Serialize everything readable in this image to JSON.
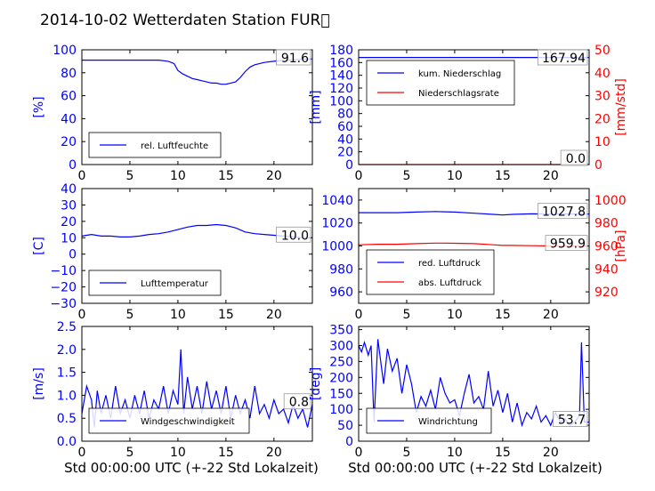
{
  "title": "2014-10-02 Wetterdaten Station FUR\u0000",
  "colors": {
    "left": "#0000ff",
    "right": "#ff0000",
    "line2": "#ff0000"
  },
  "xlabel": "Std 00:00:00 UTC (+-22 Std Lokalzeit)",
  "chart_data": [
    {
      "type": "line",
      "ylabel": "[%]",
      "ylim": [
        0,
        100
      ],
      "yticks": [
        "0",
        "20",
        "40",
        "60",
        "80",
        "100"
      ],
      "xlim": [
        0,
        24
      ],
      "xticks": [
        "0",
        "5",
        "10",
        "15",
        "20"
      ],
      "series": [
        {
          "name": "rel. Luftfeuchte",
          "x": [
            0,
            1,
            2,
            3,
            4,
            5,
            6,
            7,
            8,
            9,
            9.6,
            10,
            10.5,
            11,
            11.5,
            12,
            12.5,
            13,
            13.5,
            14,
            14.5,
            15,
            15.5,
            16,
            16.5,
            17,
            17.5,
            18,
            19,
            20,
            21,
            22,
            23,
            24
          ],
          "y": [
            91,
            91,
            91,
            91,
            91,
            91,
            91,
            91,
            91,
            90,
            88,
            82,
            79,
            77,
            75,
            74,
            73,
            72,
            71,
            71,
            70,
            70,
            71,
            72,
            76,
            81,
            85,
            87,
            89,
            90,
            91,
            91,
            92,
            92
          ]
        }
      ],
      "last_value": "91.6"
    },
    {
      "type": "line",
      "ylabel": "[mm]",
      "ylim": [
        0,
        180
      ],
      "yticks": [
        "0",
        "20",
        "40",
        "60",
        "80",
        "100",
        "120",
        "140",
        "160",
        "180"
      ],
      "ylabel2": "[mm/std]",
      "ylim2": [
        0,
        50
      ],
      "yticks2": [
        "0",
        "10",
        "20",
        "30",
        "40",
        "50"
      ],
      "xlim": [
        0,
        24
      ],
      "xticks": [
        "0",
        "5",
        "10",
        "15",
        "20"
      ],
      "series": [
        {
          "name": "kum. Niederschlag",
          "axis": "left",
          "x": [
            0,
            24
          ],
          "y": [
            167.94,
            167.94
          ]
        },
        {
          "name": "Niederschlagsrate",
          "axis": "right",
          "x": [
            0,
            24
          ],
          "y": [
            0,
            0
          ]
        }
      ],
      "last_value": "167.94",
      "last_value2": "0.0"
    },
    {
      "type": "line",
      "ylabel": "[C]",
      "ylim": [
        -30,
        40
      ],
      "yticks": [
        "−30",
        "−20",
        "−10",
        "0",
        "10",
        "20",
        "30",
        "40"
      ],
      "xlim": [
        0,
        24
      ],
      "xticks": [
        "0",
        "5",
        "10",
        "15",
        "20"
      ],
      "series": [
        {
          "name": "Lufttemperatur",
          "x": [
            0,
            1,
            2,
            3,
            4,
            5,
            6,
            7,
            8,
            9,
            10,
            11,
            12,
            13,
            14,
            15,
            16,
            17,
            18,
            19,
            20,
            21,
            22,
            23,
            24
          ],
          "y": [
            11,
            12,
            11,
            11,
            10.5,
            10.5,
            11,
            12,
            12.5,
            13.5,
            15,
            16.5,
            17.5,
            17.5,
            18,
            17.5,
            16,
            13.5,
            12.5,
            12,
            11.5,
            11,
            10.5,
            10,
            10
          ]
        }
      ],
      "last_value": "10.0"
    },
    {
      "type": "line",
      "ylabel": "",
      "ylim": [
        950,
        1050
      ],
      "yticks": [
        "960",
        "980",
        "1000",
        "1020",
        "1040"
      ],
      "ylabel2": "[hPa]",
      "ylim2": [
        910,
        1010
      ],
      "yticks2": [
        "920",
        "940",
        "960",
        "980",
        "1000"
      ],
      "xlim": [
        0,
        24
      ],
      "xticks": [
        "0",
        "5",
        "10",
        "15",
        "20"
      ],
      "series": [
        {
          "name": "red. Luftdruck",
          "axis": "left",
          "x": [
            0,
            2,
            4,
            6,
            8,
            9,
            10,
            12,
            14,
            15,
            16,
            18,
            20,
            22,
            24
          ],
          "y": [
            1029,
            1029,
            1029,
            1029.5,
            1030,
            1029.8,
            1029.5,
            1028.5,
            1027.5,
            1027,
            1027.5,
            1028,
            1027.8,
            1027.8,
            1027.8
          ]
        },
        {
          "name": "abs. Luftdruck",
          "axis": "right",
          "x": [
            0,
            2,
            4,
            6,
            8,
            9,
            10,
            12,
            14,
            15,
            16,
            18,
            20,
            22,
            24
          ],
          "y": [
            961,
            961.5,
            961.5,
            962,
            962.5,
            962.5,
            962.3,
            962,
            961,
            960.5,
            960.5,
            960.2,
            960,
            959.9,
            959.9
          ]
        }
      ],
      "last_value": "1027.8",
      "last_value2": "959.9"
    },
    {
      "type": "line",
      "ylabel": "[m/s]",
      "ylim": [
        0,
        2.5
      ],
      "yticks": [
        "0.0",
        "0.5",
        "1.0",
        "1.5",
        "2.0",
        "2.5"
      ],
      "xlim": [
        0,
        24
      ],
      "xticks": [
        "0",
        "5",
        "10",
        "15",
        "20"
      ],
      "series": [
        {
          "name": "Windgeschwindigkeit",
          "x": [
            0,
            0.5,
            1,
            1.3,
            1.6,
            2,
            2.5,
            3,
            3.5,
            4,
            4.5,
            5,
            5.5,
            6,
            6.5,
            7,
            7.5,
            8,
            8.5,
            9,
            9.5,
            10,
            10.3,
            10.6,
            11,
            11.5,
            12,
            12.5,
            13,
            13.5,
            14,
            14.5,
            15,
            15.5,
            16,
            16.5,
            17,
            17.5,
            18,
            18.5,
            19,
            19.5,
            20,
            20.5,
            21,
            21.5,
            22,
            22.5,
            23,
            23.5,
            24
          ],
          "y": [
            0.6,
            1.2,
            0.9,
            0.3,
            1.1,
            0.6,
            1.0,
            0.5,
            1.2,
            0.6,
            0.9,
            0.5,
            1.0,
            0.6,
            1.1,
            0.5,
            0.9,
            0.7,
            1.2,
            0.6,
            1.1,
            0.8,
            2.0,
            0.6,
            1.4,
            0.7,
            1.2,
            0.6,
            1.3,
            0.7,
            1.1,
            0.6,
            1.2,
            0.5,
            1.0,
            0.6,
            0.9,
            0.5,
            1.2,
            0.6,
            0.8,
            0.5,
            0.9,
            0.6,
            0.7,
            0.4,
            0.8,
            0.5,
            0.7,
            0.3,
            0.8
          ]
        }
      ],
      "last_value": "0.8"
    },
    {
      "type": "line",
      "ylabel": "[deg]",
      "ylim": [
        0,
        360
      ],
      "yticks": [
        "0",
        "50",
        "100",
        "150",
        "200",
        "250",
        "300",
        "350"
      ],
      "xlim": [
        0,
        24
      ],
      "xticks": [
        "0",
        "5",
        "10",
        "15",
        "20"
      ],
      "series": [
        {
          "name": "Windrichtung",
          "x": [
            0,
            0.3,
            0.6,
            1,
            1.3,
            1.6,
            2,
            2.3,
            2.6,
            3,
            3.5,
            4,
            4.5,
            5,
            5.5,
            6,
            6.5,
            7,
            7.5,
            8,
            8.5,
            9,
            9.5,
            10,
            10.5,
            11,
            11.5,
            12,
            12.5,
            13,
            13.5,
            14,
            14.5,
            15,
            15.5,
            16,
            16.5,
            17,
            17.5,
            18,
            18.5,
            19,
            19.5,
            20,
            20.5,
            21,
            21.5,
            22,
            22.5,
            23,
            23.2,
            23.5,
            24
          ],
          "y": [
            300,
            280,
            310,
            270,
            300,
            60,
            320,
            250,
            180,
            290,
            220,
            260,
            150,
            240,
            180,
            90,
            140,
            110,
            160,
            100,
            200,
            150,
            120,
            130,
            80,
            150,
            210,
            120,
            140,
            100,
            220,
            110,
            160,
            90,
            150,
            60,
            120,
            50,
            90,
            70,
            110,
            60,
            80,
            50,
            90,
            60,
            70,
            50,
            60,
            80,
            310,
            60,
            60
          ]
        }
      ],
      "last_value": "53.7"
    }
  ]
}
